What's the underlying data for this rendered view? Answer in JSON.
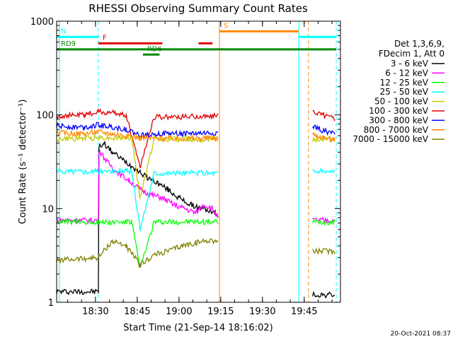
{
  "chart_data": {
    "type": "line",
    "title": "RHESSI Observing Summary Count Rates",
    "xlabel": "Start Time (21-Sep-14 18:16:02)",
    "ylabel": "Count Rate (s⁻¹ detector⁻¹)",
    "yscale": "log",
    "ylim": [
      1,
      1000
    ],
    "xlim_minutes": [
      0,
      102
    ],
    "x_ticks": [
      "18:30",
      "18:45",
      "19:00",
      "19:15",
      "19:30",
      "19:45"
    ],
    "y_ticks": [
      "1",
      "10",
      "100",
      "1000"
    ],
    "footer_date": "20-Oct-2021 08:37",
    "legend_header": [
      "Det 1,3,6,9,",
      "FDecim 1, Att 0"
    ],
    "series": [
      {
        "name": "3 - 6 keV",
        "color": "#000000",
        "x": [
          0,
          15,
          15.2,
          17,
          20,
          24,
          28,
          32,
          36,
          40,
          44,
          48,
          52,
          55,
          57,
          58,
          58.5,
          90,
          92,
          95,
          100
        ],
        "y": [
          1.3,
          1.3,
          45,
          50,
          40,
          33,
          27,
          22,
          19,
          16,
          13,
          11,
          10,
          9.5,
          9,
          8,
          null,
          null,
          1.2,
          1.2,
          1.2
        ]
      },
      {
        "name": "6 - 12 keV",
        "color": "#ff00ff",
        "x": [
          0,
          15,
          15.2,
          18,
          22,
          26,
          30,
          34,
          38,
          42,
          46,
          50,
          53,
          56,
          58,
          58.5,
          90,
          92,
          95,
          100
        ],
        "y": [
          7.5,
          7.5,
          42,
          32,
          24,
          20,
          16,
          14,
          13,
          11,
          10,
          9,
          11,
          10,
          8,
          null,
          null,
          7.5,
          7.5,
          7.5
        ]
      },
      {
        "name": "12 - 25 keV",
        "color": "#00ff00",
        "x": [
          0,
          15,
          27,
          30,
          35,
          58,
          58.5,
          90,
          92,
          100
        ],
        "y": [
          7.2,
          7.2,
          7.2,
          2.3,
          7.2,
          7.2,
          null,
          null,
          7.2,
          7.2
        ]
      },
      {
        "name": "25 - 50 keV",
        "color": "#00ffff",
        "x": [
          0,
          15,
          27,
          30,
          35,
          58,
          58.5,
          90,
          92,
          100
        ],
        "y": [
          25,
          25,
          25,
          6,
          24,
          24,
          null,
          null,
          25,
          25
        ]
      },
      {
        "name": "50 - 100 keV",
        "color": "#c8c800",
        "x": [
          0,
          15,
          27,
          30,
          35,
          58,
          58.5,
          90,
          92,
          100
        ],
        "y": [
          55,
          57,
          57,
          13,
          55,
          55,
          null,
          null,
          55,
          55
        ]
      },
      {
        "name": "100 - 300 keV",
        "color": "#e00000",
        "x": [
          0,
          10,
          15,
          20,
          25,
          30,
          35,
          45,
          58,
          58.5,
          90,
          92,
          96,
          100
        ],
        "y": [
          97,
          100,
          108,
          105,
          100,
          28,
          95,
          95,
          97,
          null,
          null,
          110,
          100,
          92
        ]
      },
      {
        "name": "300 - 800 keV",
        "color": "#0000ff",
        "x": [
          0,
          10,
          15,
          20,
          25,
          30,
          35,
          45,
          58,
          58.5,
          90,
          92,
          96,
          100
        ],
        "y": [
          76,
          74,
          78,
          74,
          70,
          60,
          63,
          63,
          64,
          null,
          null,
          75,
          68,
          62
        ]
      },
      {
        "name": "800 - 7000 keV",
        "color": "#ff8800",
        "x": [
          0,
          10,
          15,
          20,
          25,
          30,
          35,
          45,
          58,
          58.5,
          90,
          92,
          96,
          100
        ],
        "y": [
          64,
          63,
          66,
          63,
          60,
          57,
          56,
          56,
          57,
          null,
          null,
          62,
          57,
          54
        ]
      },
      {
        "name": "7000 - 15000 keV",
        "color": "#808000",
        "x": [
          0,
          15,
          20,
          25,
          30,
          35,
          40,
          45,
          50,
          55,
          58,
          58.5,
          90,
          92,
          100
        ],
        "y": [
          2.8,
          3.0,
          4.5,
          4.0,
          2.5,
          3.2,
          3.5,
          4.0,
          4.3,
          4.6,
          4.5,
          null,
          null,
          3.5,
          3.5
        ]
      }
    ],
    "vertical_markers": [
      {
        "minute": 1,
        "color": "#00ffff",
        "style": "solid"
      },
      {
        "minute": 15,
        "color": "#00ffff",
        "style": "dashed"
      },
      {
        "minute": 58.5,
        "color": "#ff8800",
        "style": "solid"
      },
      {
        "minute": 87,
        "color": "#00ffff",
        "style": "solid"
      },
      {
        "minute": 90.5,
        "color": "#ff8800",
        "style": "dashed"
      },
      {
        "minute": 100.5,
        "color": "#00ffff",
        "style": "dashed"
      }
    ],
    "flag_bars": [
      {
        "label": "N",
        "color": "#00ffff",
        "segments": [
          [
            0,
            15
          ],
          [
            87,
            100.5
          ]
        ],
        "y_value": 680
      },
      {
        "label": "S",
        "color": "#ff8800",
        "segments": [
          [
            58.5,
            87
          ]
        ],
        "y_value": 780
      },
      {
        "label": "F",
        "color": "#e00000",
        "segments": [
          [
            15,
            38
          ],
          [
            51,
            56
          ]
        ],
        "y_value": 580
      },
      {
        "label": "RD9",
        "color": "#008800",
        "segments": [
          [
            0,
            100.5
          ]
        ],
        "y_value": 500
      },
      {
        "label": "RD6",
        "color": "#008800",
        "segments": [
          [
            31,
            37
          ]
        ],
        "y_value": 440
      }
    ]
  }
}
